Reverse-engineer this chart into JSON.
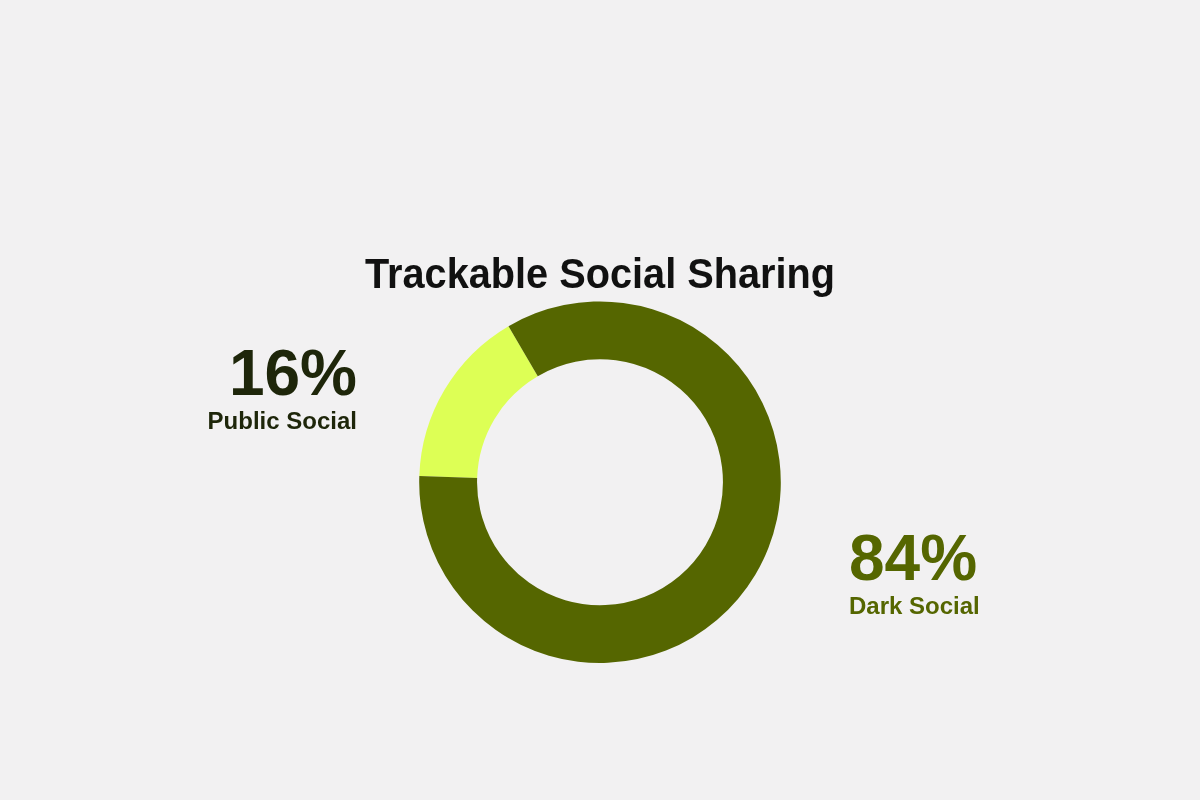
{
  "chart_data": {
    "type": "donut",
    "title": "Trackable Social Sharing",
    "categories": [
      "Public Social",
      "Dark Social"
    ],
    "values": [
      16,
      84
    ],
    "colors": [
      "#ddff55",
      "#556600"
    ],
    "value_labels": [
      "16%",
      "84%"
    ],
    "legend": false
  }
}
